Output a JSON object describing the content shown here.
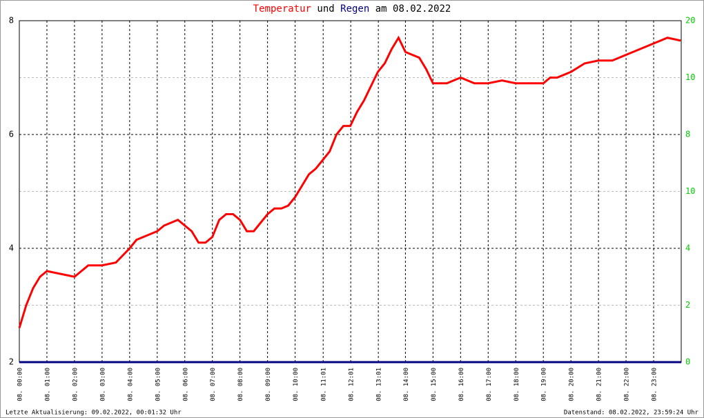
{
  "chart_data": {
    "type": "line",
    "title_parts": [
      {
        "text": "Temperatur",
        "color": "#ff0000"
      },
      {
        "text": "und",
        "color": "#000000"
      },
      {
        "text": "Regen",
        "color": "#000080"
      },
      {
        "text": "am 08.02.2022",
        "color": "#000000"
      }
    ],
    "footer_left": "Letzte Aktualisierung: 09.02.2022, 00:01:32 Uhr",
    "footer_right": "Datenstand: 08.02.2022, 23:59:24 Uhr",
    "xlim": [
      0,
      24
    ],
    "xticks": [
      {
        "value": 0,
        "label": "08. 00:00"
      },
      {
        "value": 1,
        "label": "08. 01:00"
      },
      {
        "value": 2,
        "label": "08. 02:00"
      },
      {
        "value": 3,
        "label": "08. 03:00"
      },
      {
        "value": 4,
        "label": "08. 04:00"
      },
      {
        "value": 5,
        "label": "08. 05:00"
      },
      {
        "value": 6,
        "label": "08. 06:00"
      },
      {
        "value": 7,
        "label": "08. 07:00"
      },
      {
        "value": 8,
        "label": "08. 08:00"
      },
      {
        "value": 9,
        "label": "08. 09:00"
      },
      {
        "value": 10,
        "label": "08. 10:00"
      },
      {
        "value": 11.017,
        "label": "08. 11:01"
      },
      {
        "value": 12.017,
        "label": "08. 12:01"
      },
      {
        "value": 13.017,
        "label": "08. 13:01"
      },
      {
        "value": 14,
        "label": "08. 14:00"
      },
      {
        "value": 15,
        "label": "08. 15:00"
      },
      {
        "value": 16,
        "label": "08. 16:00"
      },
      {
        "value": 17,
        "label": "08. 17:00"
      },
      {
        "value": 18,
        "label": "08. 18:00"
      },
      {
        "value": 19,
        "label": "08. 19:00"
      },
      {
        "value": 20,
        "label": "08. 20:00"
      },
      {
        "value": 21,
        "label": "08. 21:00"
      },
      {
        "value": 22,
        "label": "08. 22:00"
      },
      {
        "value": 23,
        "label": "08. 23:00"
      }
    ],
    "ylim": [
      2,
      8
    ],
    "yticks": [
      2,
      4,
      6,
      8
    ],
    "minor_yticks": [
      3,
      5,
      7
    ],
    "y2lim": [
      0,
      20
    ],
    "right_axis_labels": [
      "0",
      "2",
      "4",
      "10",
      "8",
      "10",
      "20"
    ],
    "right_axis_color": "#00cc00",
    "series": [
      {
        "name": "Temperatur",
        "color": "#ff0000",
        "x": [
          0,
          0.25,
          0.5,
          0.75,
          1,
          1.5,
          2,
          2.25,
          2.5,
          3,
          3.5,
          4,
          4.25,
          4.5,
          4.75,
          5,
          5.25,
          5.5,
          5.75,
          6,
          6.25,
          6.5,
          6.75,
          7,
          7.25,
          7.5,
          7.75,
          8,
          8.25,
          8.5,
          8.75,
          9,
          9.25,
          9.5,
          9.75,
          10,
          10.25,
          10.5,
          10.75,
          11,
          11.25,
          11.5,
          11.75,
          12,
          12.25,
          12.5,
          12.75,
          13,
          13.25,
          13.5,
          13.75,
          14,
          14.25,
          14.5,
          14.75,
          15,
          15.5,
          16,
          16.5,
          17,
          17.5,
          18,
          18.5,
          19,
          19.25,
          19.5,
          20,
          20.5,
          21,
          21.5,
          22,
          22.5,
          23,
          23.5,
          23.98
        ],
        "values": [
          2.6,
          3.0,
          3.3,
          3.5,
          3.6,
          3.55,
          3.5,
          3.6,
          3.7,
          3.7,
          3.75,
          4.0,
          4.15,
          4.2,
          4.25,
          4.3,
          4.4,
          4.45,
          4.5,
          4.4,
          4.3,
          4.1,
          4.1,
          4.2,
          4.5,
          4.6,
          4.6,
          4.5,
          4.3,
          4.3,
          4.45,
          4.6,
          4.7,
          4.7,
          4.75,
          4.9,
          5.1,
          5.3,
          5.4,
          5.55,
          5.7,
          6.0,
          6.15,
          6.15,
          6.4,
          6.6,
          6.85,
          7.1,
          7.25,
          7.5,
          7.7,
          7.45,
          7.4,
          7.35,
          7.15,
          6.9,
          6.9,
          7.0,
          6.9,
          6.9,
          6.95,
          6.9,
          6.9,
          6.9,
          7.0,
          7.0,
          7.1,
          7.25,
          7.3,
          7.3,
          7.4,
          7.5,
          7.6,
          7.7,
          7.65
        ]
      },
      {
        "name": "Regen",
        "color": "#000080",
        "axis": "y2",
        "x": [
          0,
          24
        ],
        "values": [
          0,
          0
        ]
      }
    ]
  }
}
